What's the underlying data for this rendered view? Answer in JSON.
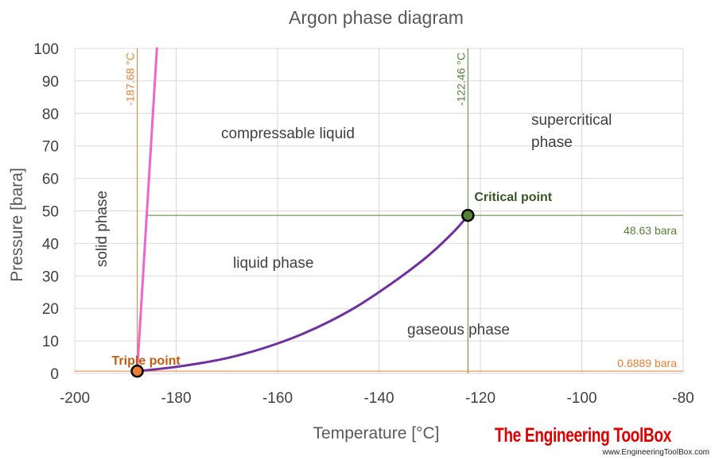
{
  "chart_data": {
    "type": "line",
    "title": "Argon phase diagram",
    "xlabel": "Temperature [°C]",
    "ylabel": "Pressure [bara]",
    "xlim": [
      -200,
      -80
    ],
    "ylim": [
      0,
      100
    ],
    "xticks": [
      "-200",
      "-180",
      "-160",
      "-140",
      "-120",
      "-100",
      "-80"
    ],
    "yticks": [
      "0",
      "10",
      "20",
      "30",
      "40",
      "50",
      "60",
      "70",
      "80",
      "90",
      "100"
    ],
    "grid": true,
    "series": [
      {
        "color": "#ee66cc",
        "x": [
          -187.68,
          -183.8
        ],
        "y": [
          0.6889,
          100
        ]
      },
      {
        "color": "#7030a0",
        "x": [
          -187.68,
          -185,
          -180,
          -175,
          -170,
          -165,
          -160,
          -155,
          -150,
          -145,
          -140,
          -135,
          -130,
          -125,
          -122.46
        ],
        "y": [
          0.6889,
          1.1,
          2.0,
          3.2,
          4.7,
          6.7,
          9.2,
          12.2,
          15.8,
          20.0,
          25.0,
          30.5,
          36.6,
          44.0,
          48.63
        ]
      }
    ],
    "reference_lines": [
      {
        "orientation": "vertical",
        "x": -187.68,
        "label": "-187.68 °C",
        "color": "#ed7d31"
      },
      {
        "orientation": "vertical",
        "x": -122.46,
        "label": "-122.46 °C",
        "color": "#548235"
      },
      {
        "orientation": "horizontal",
        "y": 48.63,
        "label": "48.63 bara",
        "color": "#548235"
      },
      {
        "orientation": "horizontal",
        "y": 0.6889,
        "label": "0.6889 bara",
        "color": "#ed7d31"
      }
    ],
    "points": [
      {
        "name": "Triple point",
        "x": -187.68,
        "y": 0.6889,
        "color": "#ed7d31",
        "label_color": "#c55a11"
      },
      {
        "name": "Critical point",
        "x": -122.46,
        "y": 48.63,
        "color": "#548235",
        "label_color": "#375623"
      }
    ],
    "regions": {
      "compressable_liquid": "compressable liquid",
      "supercritical_line1": "supercritical",
      "supercritical_line2": "phase",
      "solid_phase": "solid phase",
      "liquid_phase": "liquid phase",
      "gaseous_phase": "gaseous phase"
    }
  },
  "brand": {
    "name": "The Engineering ToolBox",
    "url": "www.EngineeringToolBox.com"
  }
}
